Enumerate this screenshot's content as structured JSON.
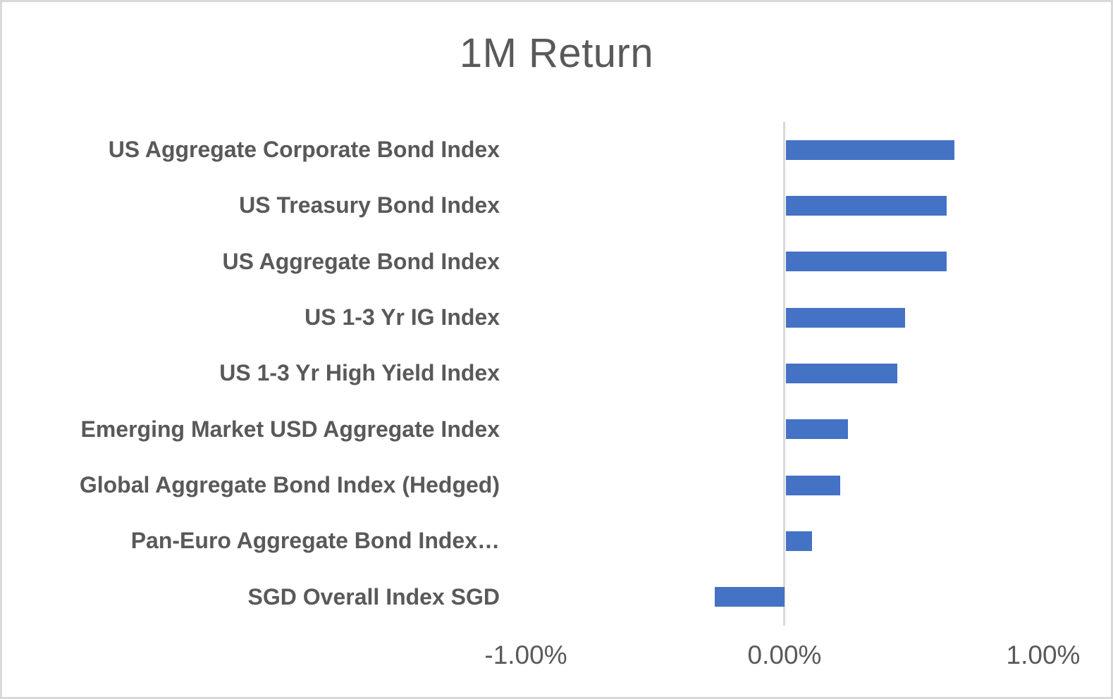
{
  "chart_data": {
    "type": "bar",
    "orientation": "horizontal",
    "title": "1M Return",
    "unit": "%",
    "categories": [
      "US Aggregate Corporate Bond Index",
      "US Treasury Bond Index",
      "US Aggregate Bond Index",
      "US 1-3 Yr IG Index",
      "US 1-3 Yr High Yield Index",
      "Emerging Market USD Aggregate Index",
      "Global Aggregate Bond Index (Hedged)",
      "Pan-Euro Aggregate Bond Index…",
      "SGD Overall Index SGD"
    ],
    "values": [
      0.65,
      0.62,
      0.62,
      0.46,
      0.43,
      0.24,
      0.21,
      0.1,
      -0.27
    ],
    "x_ticks": [
      {
        "label": "-1.00%",
        "value": -1
      },
      {
        "label": "0.00%",
        "value": 0
      },
      {
        "label": "1.00%",
        "value": 1
      }
    ],
    "xlim": [
      -1.1,
      1.28
    ],
    "grid": false,
    "legend": false,
    "colors": {
      "bar": "#4472C4",
      "text": "#595959",
      "axis": "#D9D9D9",
      "frame_border": "#D9D9D9",
      "background": "#FFFFFF"
    }
  }
}
